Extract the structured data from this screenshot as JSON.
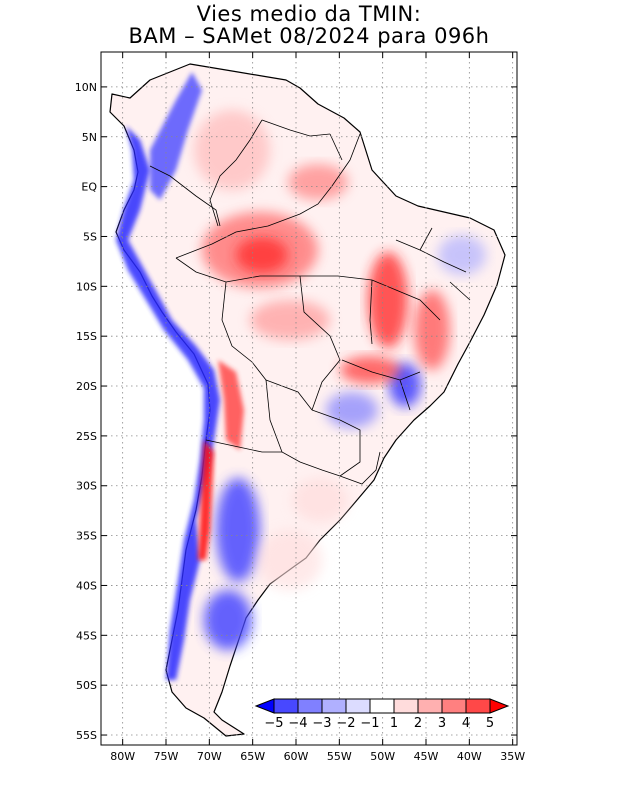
{
  "title": {
    "line1": "Vies medio da TMIN:",
    "line2": "BAM – SAMet 08/2024  para 096h"
  },
  "lat_labels": [
    "10N",
    "5N",
    "EQ",
    "5S",
    "10S",
    "15S",
    "20S",
    "25S",
    "30S",
    "35S",
    "40S",
    "45S",
    "50S",
    "55S"
  ],
  "lon_labels": [
    "80W",
    "75W",
    "70W",
    "65W",
    "60W",
    "55W",
    "50W",
    "45W",
    "40W",
    "35W"
  ],
  "lat_values": [
    10,
    5,
    0,
    -5,
    -10,
    -15,
    -20,
    -25,
    -30,
    -35,
    -40,
    -45,
    -50,
    -55
  ],
  "lon_values": [
    -80,
    -75,
    -70,
    -65,
    -60,
    -55,
    -50,
    -45,
    -40,
    -35
  ],
  "extent": {
    "lon_min": -82.5,
    "lon_max": -34.5,
    "lat_min": -56,
    "lat_max": 13.5
  },
  "colorbar": {
    "labels": [
      "−5",
      "−4",
      "−3",
      "−2",
      "−1",
      "1",
      "2",
      "3",
      "4",
      "5"
    ],
    "colors": [
      "#0000ff",
      "#4848ff",
      "#8080ff",
      "#b0b0ff",
      "#dcdcff",
      "#ffffff",
      "#ffdcdc",
      "#ffb0b0",
      "#ff8080",
      "#ff4848",
      "#ff0000"
    ]
  }
}
